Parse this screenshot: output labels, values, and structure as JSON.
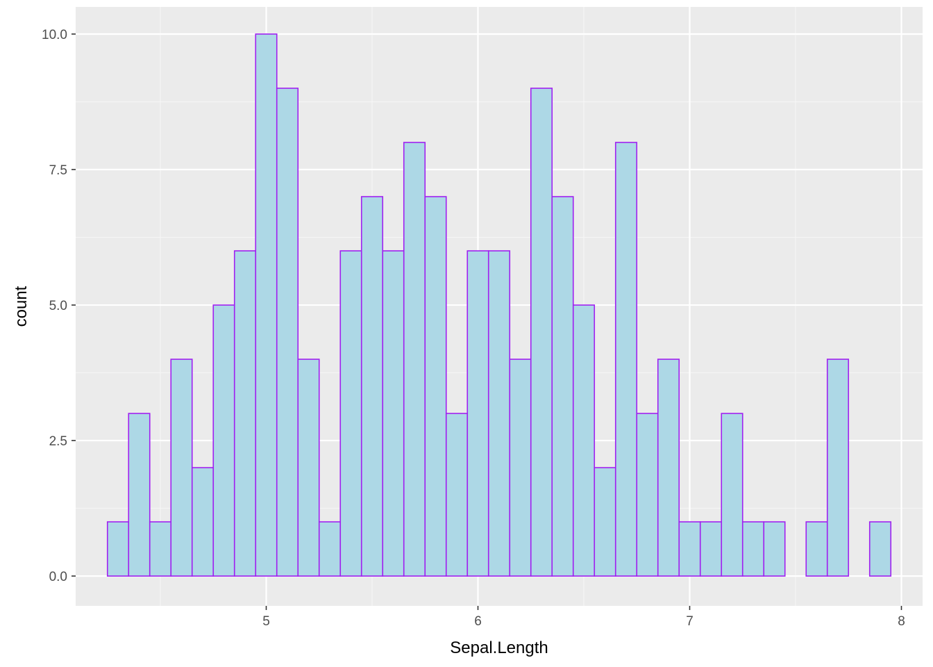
{
  "chart_data": {
    "type": "bar",
    "subtype": "histogram",
    "xlabel": "Sepal.Length",
    "ylabel": "count",
    "xlim": [
      4.1,
      8.1
    ],
    "ylim": [
      -0.55,
      10.5
    ],
    "x_ticks": [
      5,
      6,
      7,
      8
    ],
    "x_tick_labels": [
      "5",
      "6",
      "7",
      "8"
    ],
    "y_ticks": [
      0,
      2.5,
      5,
      7.5,
      10
    ],
    "y_tick_labels": [
      "0.0",
      "2.5",
      "5.0",
      "7.5",
      "10.0"
    ],
    "x_minor_ticks": [
      4.5,
      5.5,
      6.5,
      7.5
    ],
    "y_minor_ticks": [
      1.25,
      3.75,
      6.25,
      8.75
    ],
    "grid": true,
    "bins": {
      "start": 4.25,
      "width": 0.1,
      "counts": [
        1,
        3,
        1,
        4,
        2,
        5,
        6,
        10,
        9,
        4,
        1,
        6,
        7,
        6,
        8,
        7,
        3,
        6,
        6,
        4,
        9,
        7,
        5,
        2,
        8,
        3,
        4,
        1,
        1,
        3,
        1,
        1,
        0,
        1,
        4,
        0,
        1
      ]
    },
    "colors": {
      "fill": "#add8e6",
      "outline": "#a020f0",
      "panel_background": "#ebebeb",
      "grid_major": "#ffffff",
      "grid_minor": "#f5f5f5"
    }
  }
}
